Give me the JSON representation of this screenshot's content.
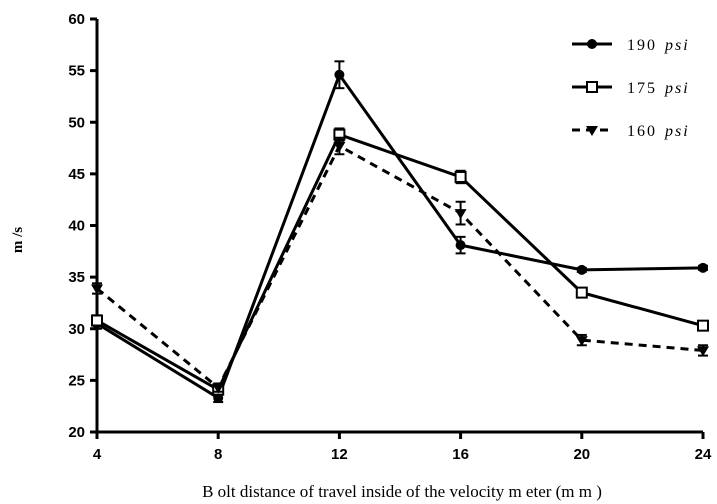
{
  "chart_data": {
    "type": "line",
    "xlabel": "B olt distance of travel inside of the velocity m eter (m m )",
    "ylabel": "m /s",
    "x": [
      4,
      8,
      12,
      16,
      20,
      24
    ],
    "xlim": [
      4,
      24
    ],
    "ylim": [
      20,
      60
    ],
    "xticks": [
      "4",
      "8",
      "12",
      "16",
      "20",
      "24"
    ],
    "yticks": [
      "20",
      "25",
      "30",
      "35",
      "40",
      "45",
      "50",
      "55",
      "60"
    ],
    "grid": false,
    "legend_position": "top-right",
    "series": [
      {
        "name": "190",
        "unit": "psi",
        "marker": "circle",
        "line_style": "solid",
        "values": [
          30.5,
          23.3,
          54.6,
          38.1,
          35.7,
          35.9
        ],
        "errors": [
          0.5,
          0.4,
          1.3,
          0.8,
          0.2,
          0.2
        ]
      },
      {
        "name": "175",
        "unit": "psi",
        "marker": "square",
        "line_style": "solid",
        "values": [
          30.8,
          24.1,
          48.8,
          44.7,
          33.5,
          30.3
        ],
        "errors": [
          0.5,
          0.4,
          0.6,
          0.6,
          0.3,
          0.3
        ]
      },
      {
        "name": "160",
        "unit": "psi",
        "marker": "triangle-down",
        "line_style": "dashed",
        "values": [
          33.9,
          24.3,
          47.7,
          41.2,
          28.9,
          27.9
        ],
        "errors": [
          0.5,
          0.4,
          0.8,
          1.1,
          0.5,
          0.5
        ]
      }
    ],
    "color": "#000000"
  }
}
